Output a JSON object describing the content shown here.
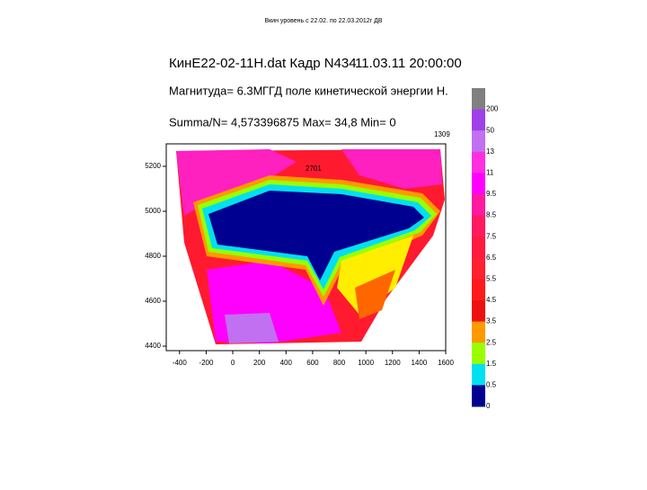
{
  "caption": "Вкин уровень с 22.02. по 22.03.2012г ДВ",
  "chart_data": {
    "type": "contour",
    "title": "КинE22-02-11Н.dat Кадр N434",
    "datetime": "11.03.11 20:00:00",
    "magnitude": "Магнитуда= 6.3M",
    "field": "ГГД поле кинетической энергии Н.",
    "summary": "Summa/N= 4,573396875 Max= 34,8 Min= 0",
    "xlim": [
      -500,
      1600
    ],
    "xticks": [
      -400,
      -200,
      0,
      200,
      400,
      600,
      800,
      1000,
      1200,
      1400,
      1600
    ],
    "ylim": [
      4380,
      5300
    ],
    "yticks": [
      4400,
      4600,
      4800,
      5000,
      5200
    ],
    "colorbar": {
      "labels": [
        200,
        50,
        13,
        11,
        9.5,
        8.5,
        7.5,
        6.5,
        5.5,
        4.5,
        3.5,
        2.5,
        1.5,
        0.5,
        0
      ],
      "colors": [
        "#808080",
        "#a040e8",
        "#c070f0",
        "#ff30e0",
        "#ff00ff",
        "#ff1aa0",
        "#ff1a60",
        "#ff1a40",
        "#ff2030",
        "#ff1a1a",
        "#ee1010",
        "#ff9900",
        "#99ff00",
        "#00e0f0",
        "#000090"
      ]
    },
    "annotations": [
      "1309",
      "2701"
    ]
  }
}
